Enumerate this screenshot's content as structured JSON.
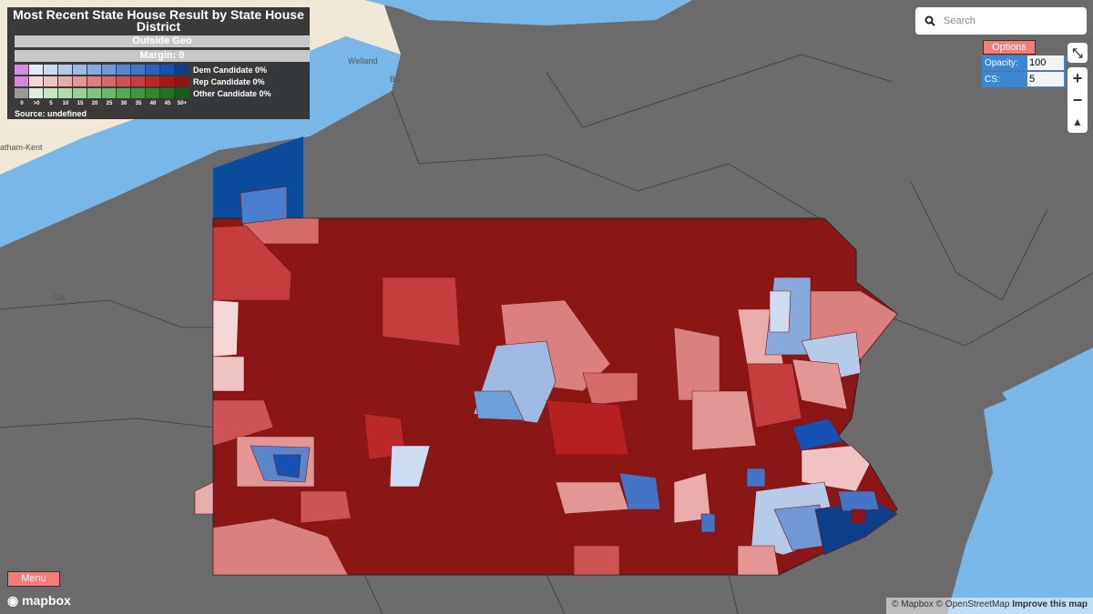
{
  "legend": {
    "title": "Most Recent State House Result by State House District",
    "outside_geo": "Outside Geo",
    "margin": "Margin: 0",
    "rows": [
      {
        "label": "Dem Candidate 0%",
        "colors": [
          "#d88be0",
          "#e3eaf5",
          "#cddcf0",
          "#b6cbe9",
          "#9fbae2",
          "#88a9db",
          "#7198d4",
          "#5a86cd",
          "#4374c5",
          "#2c62bd",
          "#1652b4",
          "#0b3f8a"
        ]
      },
      {
        "label": "Rep Candidate 0%",
        "colors": [
          "#d08ad8",
          "#f6d7d7",
          "#f0c2c2",
          "#e9acac",
          "#e29696",
          "#db8080",
          "#d46a6a",
          "#cc5454",
          "#c43e3e",
          "#bb2828",
          "#a81a1a",
          "#8b1414"
        ]
      },
      {
        "label": "Other Candidate 0%",
        "colors": [
          "#9a9a9a",
          "#dcf1dc",
          "#c6e7c6",
          "#b0ddb0",
          "#99d199",
          "#82c482",
          "#6bb66b",
          "#56a756",
          "#439643",
          "#338433",
          "#257225",
          "#1b5e1b"
        ]
      }
    ],
    "scale": [
      "0",
      ">0",
      "5",
      "10",
      "15",
      "20",
      "25",
      "30",
      "35",
      "40",
      "45",
      "50+"
    ],
    "source": "Source: undefined"
  },
  "search": {
    "placeholder": "Search"
  },
  "options": {
    "button": "Options",
    "opacity_label": "Opacity:",
    "opacity_value": "100",
    "cs_label": "CS:",
    "cs_value": "5"
  },
  "menu": "Menu",
  "map_labels": [
    "Welland",
    "Bu",
    "atham-Kent",
    "Cla"
  ],
  "attribution": {
    "logo": "mapbox",
    "mapbox": "© Mapbox",
    "osm": "© OpenStreetMap",
    "improve": "Improve this map"
  }
}
